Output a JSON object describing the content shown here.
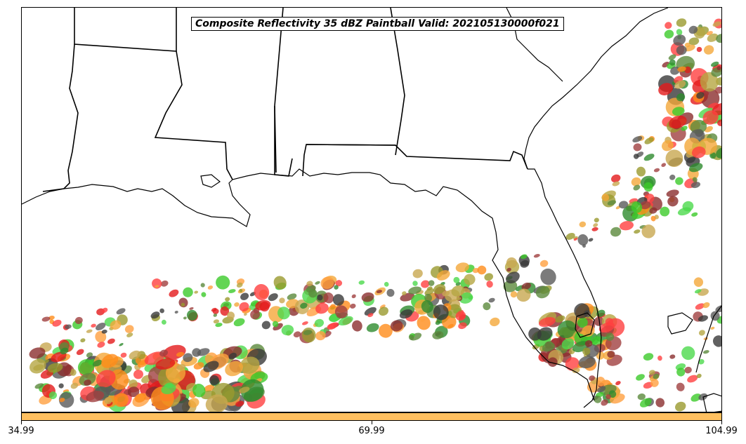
{
  "title": "Composite Reflectivity 35 dBZ Paintball Valid: 202105130000f021",
  "colorbar": {
    "color": "#FFC060",
    "ticks": [
      "34.99",
      "69.99",
      "104.99"
    ]
  },
  "paintball_colors": [
    "#E41A1C",
    "#FF4040",
    "#FF8C1A",
    "#FFA040",
    "#F4A83A",
    "#3CCB2B",
    "#4CD94C",
    "#2E8B2E",
    "#5B8A3C",
    "#9A9A2E",
    "#B5A642",
    "#8B2E2E",
    "#A04040",
    "#5A5A5A",
    "#3A3A3A",
    "#C8A850"
  ],
  "map": {
    "projection": "lambert-conformal",
    "features": [
      "coastlines",
      "state-borders"
    ],
    "region": "Southeastern United States and Gulf of Mexico"
  }
}
